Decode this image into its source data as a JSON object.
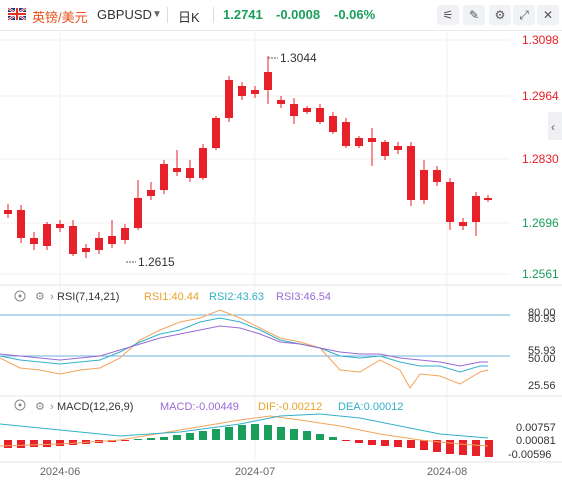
{
  "header": {
    "symbol_cn": "英镑/美元",
    "symbol": "GBPUSD",
    "timeframe": "日K",
    "price": "1.2741",
    "change": "-0.0008",
    "change_pct": "-0.06%"
  },
  "colors": {
    "up": "#1a9e5c",
    "down": "#e8202a",
    "line": "#5aa0d8",
    "accent": "#e86a1a"
  },
  "main_chart": {
    "price_axis": [
      "1.3098",
      "1.2964",
      "1.2830",
      "1.2696",
      "1.2561"
    ],
    "high_label": "1.3044",
    "low_label": "1.2615"
  },
  "rsi": {
    "title": "RSI(7,14,21)",
    "rsi1": "RSI1:40.44",
    "rsi2": "RSI2:43.63",
    "rsi3": "RSI3:46.54",
    "axis": [
      "80.00",
      "80.93",
      "55.93",
      "50.00",
      "25.56"
    ]
  },
  "macd": {
    "title": "MACD(12,26,9)",
    "macd": "MACD:-0.00449",
    "dif": "DIF:-0.00212",
    "dea": "DEA:0.00012",
    "axis": [
      "0.00757",
      "0.00081",
      "-0.00596"
    ]
  },
  "time_axis": [
    "2024-06",
    "2024-07",
    "2024-08"
  ]
}
